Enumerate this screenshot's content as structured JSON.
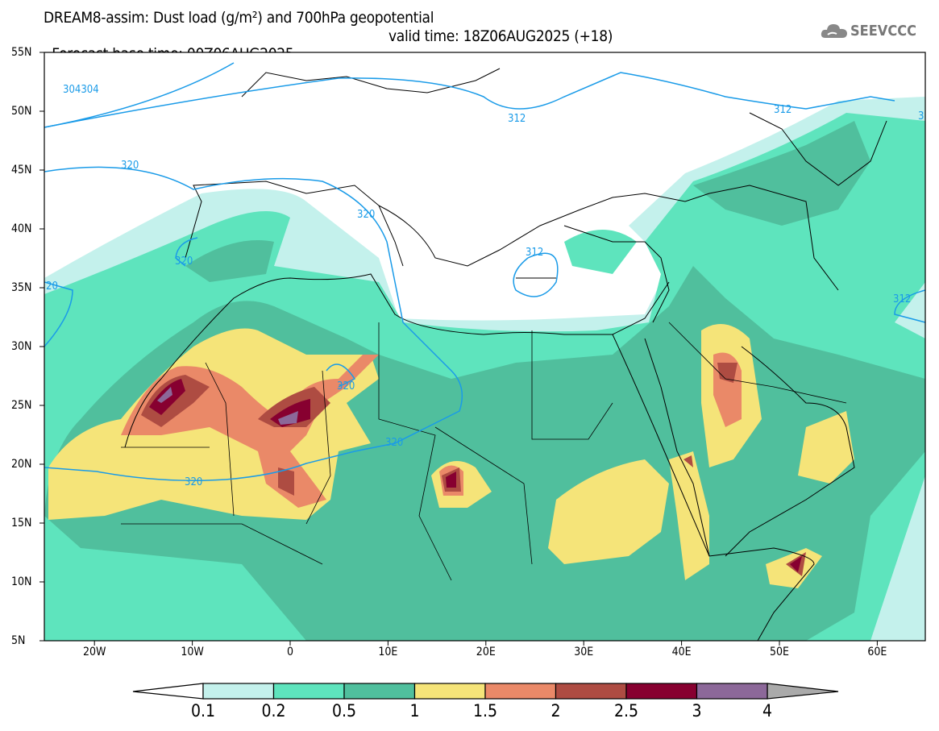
{
  "header": {
    "title": "DREAM8-assim: Dust load (g/m²) and 700hPa geopotential",
    "base_time": "Forecast base time: 00Z06AUG2025",
    "valid_time": "valid time: 18Z06AUG2025 (+18)",
    "logo_text": "SEEVCCC"
  },
  "axes": {
    "lat_labels": [
      "55N",
      "50N",
      "45N",
      "40N",
      "35N",
      "30N",
      "25N",
      "20N",
      "15N",
      "10N",
      "5N"
    ],
    "lon_labels": [
      "20W",
      "10W",
      "0",
      "10E",
      "20E",
      "30E",
      "40E",
      "50E",
      "60E"
    ]
  },
  "contour_labels": [
    "304304",
    "312",
    "312",
    "312",
    "312",
    "320",
    "320",
    "320",
    "320",
    "320",
    "320",
    "20",
    "3"
  ],
  "colorbar": {
    "levels": [
      "0.1",
      "0.2",
      "0.5",
      "1",
      "1.5",
      "2",
      "2.5",
      "3",
      "4"
    ],
    "colors": [
      "#c4f1ec",
      "#5ee4bd",
      "#50bf9d",
      "#f5e479",
      "#ea8968",
      "#ae4c42",
      "#870030",
      "#8c6899"
    ],
    "over_color": "#aaaaaa"
  },
  "colors": {
    "contour": "#1a9be8"
  }
}
